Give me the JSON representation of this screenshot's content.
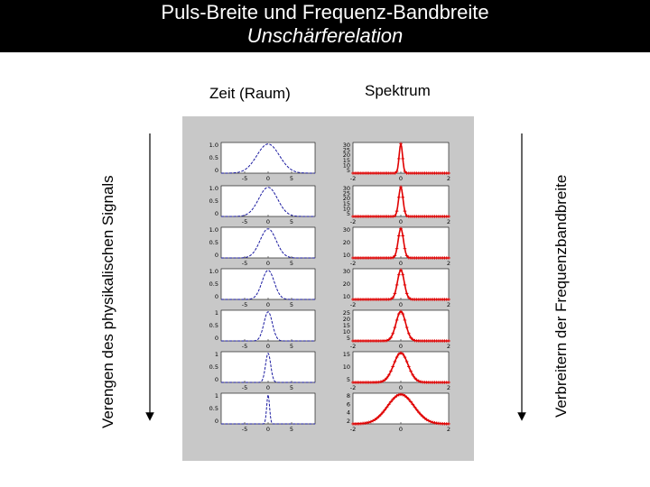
{
  "header": {
    "title": "Puls-Breite und Frequenz-Bandbreite",
    "subtitle": "Unschärferelation"
  },
  "columns": {
    "time_label": "Zeit (Raum)",
    "spectrum_label": "Spektrum"
  },
  "axes_labels": {
    "left": "Verengen des physikalischen Signals",
    "right": "Verbreitern der Frequenzbandbreite"
  },
  "colors": {
    "header_bg": "#000000",
    "header_text": "#ffffff",
    "panel_bg": "#c8c8c8",
    "time_curve": "#1a1aa0",
    "spectrum_curve": "#e00000"
  },
  "chart_data": {
    "type": "line",
    "rows": [
      {
        "time": {
          "xlim": [
            -10,
            10
          ],
          "xticks": [
            "-5",
            "0",
            "5"
          ],
          "yticks": [
            "1.0",
            "0.5",
            "0"
          ],
          "ylim": [
            0,
            1
          ],
          "width": 2.4
        },
        "spectrum": {
          "xlim": [
            -2,
            2
          ],
          "xticks": [
            "-2",
            "0",
            "2"
          ],
          "yticks": [
            "30",
            "25",
            "20",
            "15",
            "10",
            "5"
          ],
          "ylim": [
            0,
            32
          ],
          "width": 0.07
        }
      },
      {
        "time": {
          "xlim": [
            -10,
            10
          ],
          "xticks": [
            "-5",
            "0",
            "5"
          ],
          "yticks": [
            "1.0",
            "0.5",
            "0"
          ],
          "ylim": [
            0,
            1
          ],
          "width": 2.0
        },
        "spectrum": {
          "xlim": [
            -2,
            2
          ],
          "xticks": [
            "-2",
            "0",
            "2"
          ],
          "yticks": [
            "30",
            "25",
            "20",
            "15",
            "10",
            "5"
          ],
          "ylim": [
            0,
            32
          ],
          "width": 0.09
        }
      },
      {
        "time": {
          "xlim": [
            -10,
            10
          ],
          "xticks": [
            "-5",
            "0",
            "5"
          ],
          "yticks": [
            "1.0",
            "0.5",
            "0"
          ],
          "ylim": [
            0,
            1
          ],
          "width": 1.7
        },
        "spectrum": {
          "xlim": [
            -2,
            2
          ],
          "xticks": [
            "-2",
            "0",
            "2"
          ],
          "yticks": [
            "30",
            "20",
            "10"
          ],
          "ylim": [
            0,
            32
          ],
          "width": 0.11
        }
      },
      {
        "time": {
          "xlim": [
            -10,
            10
          ],
          "xticks": [
            "-5",
            "0",
            "5"
          ],
          "yticks": [
            "1.0",
            "0.5",
            "0"
          ],
          "ylim": [
            0,
            1
          ],
          "width": 1.3
        },
        "spectrum": {
          "xlim": [
            -2,
            2
          ],
          "xticks": [
            "-2",
            "0",
            "2"
          ],
          "yticks": [
            "30",
            "20",
            "10"
          ],
          "ylim": [
            0,
            32
          ],
          "width": 0.14
        }
      },
      {
        "time": {
          "xlim": [
            -10,
            10
          ],
          "xticks": [
            "-5",
            "0",
            "5"
          ],
          "yticks": [
            "1",
            "0.5",
            "0"
          ],
          "ylim": [
            0,
            1
          ],
          "width": 0.9
        },
        "spectrum": {
          "xlim": [
            -2,
            2
          ],
          "xticks": [
            "-2",
            "0",
            "2"
          ],
          "yticks": [
            "25",
            "20",
            "15",
            "10",
            "5"
          ],
          "ylim": [
            0,
            26
          ],
          "width": 0.2
        }
      },
      {
        "time": {
          "xlim": [
            -10,
            10
          ],
          "xticks": [
            "-5",
            "0",
            "5"
          ],
          "yticks": [
            "1",
            "0.5",
            "0"
          ],
          "ylim": [
            0,
            1
          ],
          "width": 0.55
        },
        "spectrum": {
          "xlim": [
            -2,
            2
          ],
          "xticks": [
            "-2",
            "0",
            "2"
          ],
          "yticks": [
            "15",
            "10",
            "5"
          ],
          "ylim": [
            0,
            16
          ],
          "width": 0.3
        }
      },
      {
        "time": {
          "xlim": [
            -10,
            10
          ],
          "xticks": [
            "-5",
            "0",
            "5"
          ],
          "yticks": [
            "1",
            "0.5",
            "0"
          ],
          "ylim": [
            0,
            1
          ],
          "width": 0.3
        },
        "spectrum": {
          "xlim": [
            -2,
            2
          ],
          "xticks": [
            "-2",
            "0",
            "2"
          ],
          "yticks": [
            "8",
            "6",
            "4",
            "2"
          ],
          "ylim": [
            0,
            9
          ],
          "width": 0.55
        }
      }
    ]
  }
}
